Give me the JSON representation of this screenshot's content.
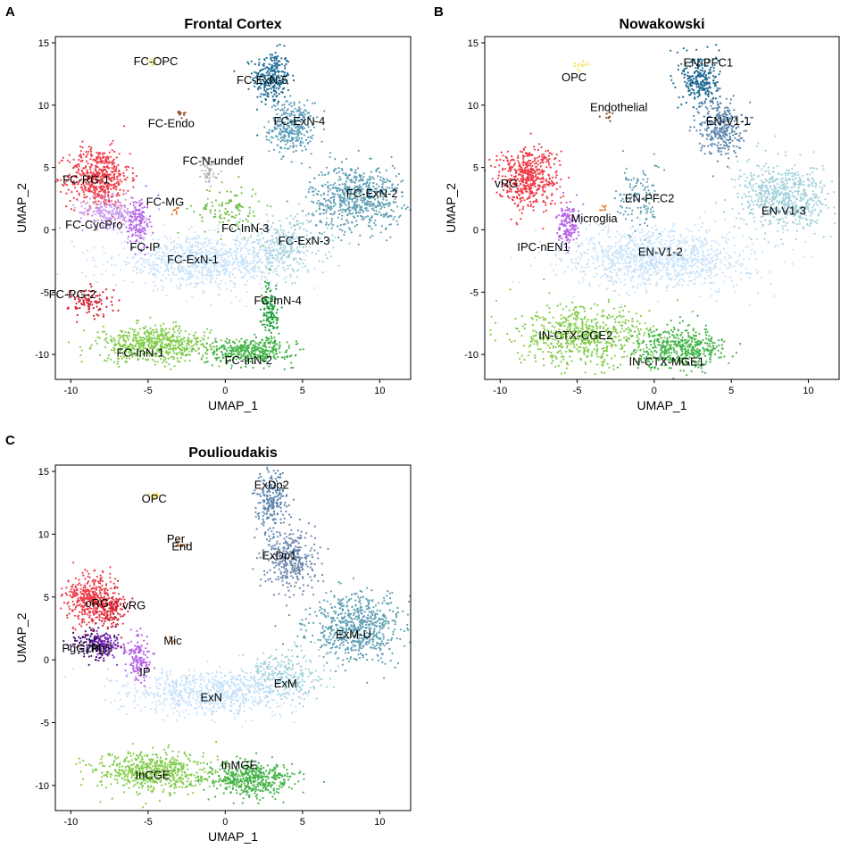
{
  "chart_data": [
    {
      "panel": "A",
      "type": "scatter",
      "title": "Frontal Cortex",
      "xlabel": "UMAP_1",
      "ylabel": "UMAP_2",
      "xlim": [
        -11,
        12
      ],
      "ylim": [
        -12,
        15.5
      ],
      "xticks": [
        -10,
        -5,
        0,
        5,
        10
      ],
      "yticks": [
        -10,
        -5,
        0,
        5,
        10,
        15
      ],
      "grid": false,
      "legend": "none",
      "clusters": [
        {
          "label": "FC-OPC",
          "x": -4.7,
          "y": 13.5,
          "sx": 0.25,
          "sy": 0.2,
          "n": 12,
          "color": "#f2e14b",
          "lx": -4.5,
          "ly": 13.5
        },
        {
          "label": "FC-Endo",
          "x": -2.9,
          "y": 9.3,
          "sx": 0.25,
          "sy": 0.2,
          "n": 10,
          "color": "#8b4a1f",
          "lx": -3.5,
          "ly": 8.5
        },
        {
          "label": "FC-ExN-5",
          "x": 3.0,
          "y": 12.2,
          "sx": 0.6,
          "sy": 1.1,
          "n": 260,
          "color": "#1f6a94",
          "lx": 2.4,
          "ly": 12.0
        },
        {
          "label": "FC-ExN-4",
          "x": 4.3,
          "y": 8.2,
          "sx": 0.7,
          "sy": 1.0,
          "n": 320,
          "color": "#5d9eb9",
          "lx": 4.8,
          "ly": 8.7
        },
        {
          "label": "FC-N-undef",
          "x": -1.0,
          "y": 4.8,
          "sx": 0.25,
          "sy": 0.6,
          "n": 50,
          "color": "#b3b3b3",
          "lx": -0.8,
          "ly": 5.5
        },
        {
          "label": "FC-RG-1",
          "x": -8.2,
          "y": 4.2,
          "sx": 1.0,
          "sy": 1.2,
          "n": 520,
          "color": "#ee3d49",
          "lx": -9.0,
          "ly": 4.0
        },
        {
          "label": "FC-MG",
          "x": -3.2,
          "y": 1.6,
          "sx": 0.12,
          "sy": 0.15,
          "n": 8,
          "color": "#e37f2f",
          "lx": -3.9,
          "ly": 2.2
        },
        {
          "label": "FC-CycPro",
          "x": -7.5,
          "y": 1.4,
          "sx": 1.0,
          "sy": 0.6,
          "n": 220,
          "color": "#c99bef",
          "lx": -8.5,
          "ly": 0.4
        },
        {
          "label": "FC-InN-3",
          "x": 0.2,
          "y": 1.6,
          "sx": 1.1,
          "sy": 1.0,
          "n": 110,
          "color": "#6fc04b",
          "lx": 1.3,
          "ly": 0.1
        },
        {
          "label": "FC-ExN-2",
          "x": 8.5,
          "y": 2.6,
          "sx": 1.5,
          "sy": 1.3,
          "n": 650,
          "color": "#5f9fb3",
          "lx": 9.5,
          "ly": 2.9
        },
        {
          "label": "FC-IP",
          "x": -5.6,
          "y": 0.6,
          "sx": 0.35,
          "sy": 1.0,
          "n": 160,
          "color": "#b566e6",
          "lx": -5.2,
          "ly": -1.4
        },
        {
          "label": "FC-ExN-3",
          "x": 3.8,
          "y": -1.3,
          "sx": 1.4,
          "sy": 1.2,
          "n": 300,
          "color": "#a3d1dc",
          "lx": 5.1,
          "ly": -0.9
        },
        {
          "label": "FC-ExN-1",
          "x": -1.5,
          "y": -2.6,
          "sx": 2.8,
          "sy": 1.0,
          "n": 850,
          "color": "#c7e2fa",
          "lx": -2.1,
          "ly": -2.4
        },
        {
          "label": "FC-RG-2",
          "x": -8.7,
          "y": -5.8,
          "sx": 0.7,
          "sy": 0.6,
          "n": 100,
          "color": "#d4212f",
          "lx": -9.9,
          "ly": -5.2
        },
        {
          "label": "FC-InN-4",
          "x": 2.9,
          "y": -6.7,
          "sx": 0.25,
          "sy": 1.3,
          "n": 140,
          "color": "#1f9e39",
          "lx": 3.4,
          "ly": -5.7
        },
        {
          "label": "FC-InN-1",
          "x": -4.6,
          "y": -9.2,
          "sx": 1.8,
          "sy": 0.7,
          "n": 600,
          "color": "#83cc4a",
          "lx": -5.5,
          "ly": -9.9
        },
        {
          "label": "FC-InN-2",
          "x": 1.6,
          "y": -9.7,
          "sx": 1.4,
          "sy": 0.5,
          "n": 380,
          "color": "#45b449",
          "lx": 1.5,
          "ly": -10.5
        }
      ]
    },
    {
      "panel": "B",
      "type": "scatter",
      "title": "Nowakowski",
      "xlabel": "UMAP_1",
      "ylabel": "UMAP_2",
      "xlim": [
        -11,
        12
      ],
      "ylim": [
        -12,
        15.5
      ],
      "xticks": [
        -10,
        -5,
        0,
        5,
        10
      ],
      "yticks": [
        -10,
        -5,
        0,
        5,
        10,
        15
      ],
      "grid": false,
      "legend": "none",
      "clusters": [
        {
          "label": "OPC",
          "x": -4.8,
          "y": 13.3,
          "sx": 0.25,
          "sy": 0.2,
          "n": 12,
          "color": "#f2e14b",
          "lx": -5.2,
          "ly": 12.2
        },
        {
          "label": "EN-PFC1",
          "x": 3.0,
          "y": 12.0,
          "sx": 0.6,
          "sy": 1.1,
          "n": 260,
          "color": "#1f6a94",
          "lx": 3.5,
          "ly": 13.4
        },
        {
          "label": "Endothelial",
          "x": -3.0,
          "y": 9.2,
          "sx": 0.25,
          "sy": 0.2,
          "n": 10,
          "color": "#8b4a1f",
          "lx": -2.3,
          "ly": 9.8
        },
        {
          "label": "EN-V1-1",
          "x": 4.3,
          "y": 8.2,
          "sx": 0.7,
          "sy": 1.1,
          "n": 320,
          "color": "#5e86ae",
          "lx": 4.8,
          "ly": 8.7
        },
        {
          "label": "vRG",
          "x": -8.2,
          "y": 4.2,
          "sx": 1.0,
          "sy": 1.2,
          "n": 520,
          "color": "#ee3d49",
          "lx": -9.6,
          "ly": 3.7
        },
        {
          "label": "EN-PFC2",
          "x": -1.0,
          "y": 2.5,
          "sx": 0.7,
          "sy": 1.5,
          "n": 120,
          "color": "#5e9fb4",
          "lx": -0.3,
          "ly": 2.5
        },
        {
          "label": "Microglia",
          "x": -3.3,
          "y": 1.7,
          "sx": 0.12,
          "sy": 0.15,
          "n": 8,
          "color": "#e37f2f",
          "lx": -3.9,
          "ly": 0.9
        },
        {
          "label": "EN-V1-3",
          "x": 8.5,
          "y": 2.6,
          "sx": 1.5,
          "sy": 1.3,
          "n": 650,
          "color": "#a3d1dc",
          "lx": 8.4,
          "ly": 1.5
        },
        {
          "label": "IPC-nEN1",
          "x": -5.6,
          "y": 0.3,
          "sx": 0.35,
          "sy": 0.9,
          "n": 150,
          "color": "#b566e6",
          "lx": -7.2,
          "ly": -1.4
        },
        {
          "label": "EN-V1-2",
          "x": 0.5,
          "y": -2.3,
          "sx": 3.0,
          "sy": 1.2,
          "n": 1050,
          "color": "#c7e2fa",
          "lx": 0.4,
          "ly": -1.8
        },
        {
          "label": "IN-CTX-CGE2",
          "x": -4.6,
          "y": -8.6,
          "sx": 2.2,
          "sy": 1.2,
          "n": 650,
          "color": "#83cc4a",
          "lx": -5.1,
          "ly": -8.5
        },
        {
          "label": "IN-CTX-MGE1",
          "x": 1.7,
          "y": -9.5,
          "sx": 1.4,
          "sy": 0.8,
          "n": 480,
          "color": "#45b449",
          "lx": 0.8,
          "ly": -10.6
        }
      ]
    },
    {
      "panel": "C",
      "type": "scatter",
      "title": "Poulioudakis",
      "xlabel": "UMAP_1",
      "ylabel": "UMAP_2",
      "xlim": [
        -11,
        12
      ],
      "ylim": [
        -12,
        15.5
      ],
      "xticks": [
        -10,
        -5,
        0,
        5,
        10
      ],
      "yticks": [
        -10,
        -5,
        0,
        5,
        10,
        15
      ],
      "grid": false,
      "legend": "none",
      "clusters": [
        {
          "label": "OPC",
          "x": -4.6,
          "y": 13.0,
          "sx": 0.2,
          "sy": 0.15,
          "n": 10,
          "color": "#f2e14b",
          "lx": -4.6,
          "ly": 12.8
        },
        {
          "label": "ExDp2",
          "x": 3.0,
          "y": 12.5,
          "sx": 0.5,
          "sy": 1.2,
          "n": 230,
          "color": "#5e86ae",
          "lx": 3.0,
          "ly": 13.9
        },
        {
          "label": "Per",
          "x": -3.0,
          "y": 9.2,
          "sx": 0.15,
          "sy": 0.12,
          "n": 5,
          "color": "#c46a1c",
          "lx": -3.2,
          "ly": 9.6
        },
        {
          "label": "End",
          "x": -2.8,
          "y": 9.1,
          "sx": 0.2,
          "sy": 0.12,
          "n": 6,
          "color": "#8b4a1f",
          "lx": -2.8,
          "ly": 9.0
        },
        {
          "label": "ExDp1",
          "x": 4.3,
          "y": 8.0,
          "sx": 0.8,
          "sy": 1.2,
          "n": 340,
          "color": "#6e88ad",
          "lx": 3.5,
          "ly": 8.3
        },
        {
          "label": "oRG",
          "x": -8.6,
          "y": 4.8,
          "sx": 0.8,
          "sy": 1.0,
          "n": 420,
          "color": "#ee3d49",
          "lx": -8.3,
          "ly": 4.5
        },
        {
          "label": "vRG",
          "x": -7.4,
          "y": 4.0,
          "sx": 0.5,
          "sy": 0.8,
          "n": 120,
          "color": "#d4212f",
          "lx": -5.9,
          "ly": 4.3
        },
        {
          "label": "Mic",
          "x": -3.4,
          "y": 1.6,
          "sx": 0.12,
          "sy": 0.15,
          "n": 6,
          "color": "#e37f2f",
          "lx": -3.4,
          "ly": 1.5
        },
        {
          "label": "PgG2M",
          "x": -8.6,
          "y": 1.3,
          "sx": 0.7,
          "sy": 0.6,
          "n": 130,
          "color": "#3b0a6e",
          "lx": -9.3,
          "ly": 0.9
        },
        {
          "label": "PgS",
          "x": -7.8,
          "y": 1.1,
          "sx": 0.5,
          "sy": 0.5,
          "n": 110,
          "color": "#7b2cbd",
          "lx": -8.0,
          "ly": 0.9
        },
        {
          "label": "ExM-U",
          "x": 8.5,
          "y": 2.6,
          "sx": 1.5,
          "sy": 1.3,
          "n": 650,
          "color": "#5f9fb3",
          "lx": 8.3,
          "ly": 2.0
        },
        {
          "label": "IP",
          "x": -5.6,
          "y": 0.0,
          "sx": 0.4,
          "sy": 0.9,
          "n": 150,
          "color": "#b566e6",
          "lx": -5.2,
          "ly": -1.0
        },
        {
          "label": "ExM",
          "x": 3.7,
          "y": -1.3,
          "sx": 1.3,
          "sy": 1.0,
          "n": 280,
          "color": "#a3d1dc",
          "lx": 3.9,
          "ly": -1.9
        },
        {
          "label": "ExN",
          "x": -0.9,
          "y": -2.6,
          "sx": 2.6,
          "sy": 0.9,
          "n": 750,
          "color": "#c7e2fa",
          "lx": -0.9,
          "ly": -3.0
        },
        {
          "label": "InCGE",
          "x": -4.6,
          "y": -9.0,
          "sx": 1.9,
          "sy": 0.8,
          "n": 620,
          "color": "#83cc4a",
          "lx": -4.7,
          "ly": -9.2
        },
        {
          "label": "InMGE",
          "x": 1.7,
          "y": -9.5,
          "sx": 1.4,
          "sy": 0.7,
          "n": 460,
          "color": "#45b449",
          "lx": 0.9,
          "ly": -8.4
        }
      ]
    }
  ]
}
